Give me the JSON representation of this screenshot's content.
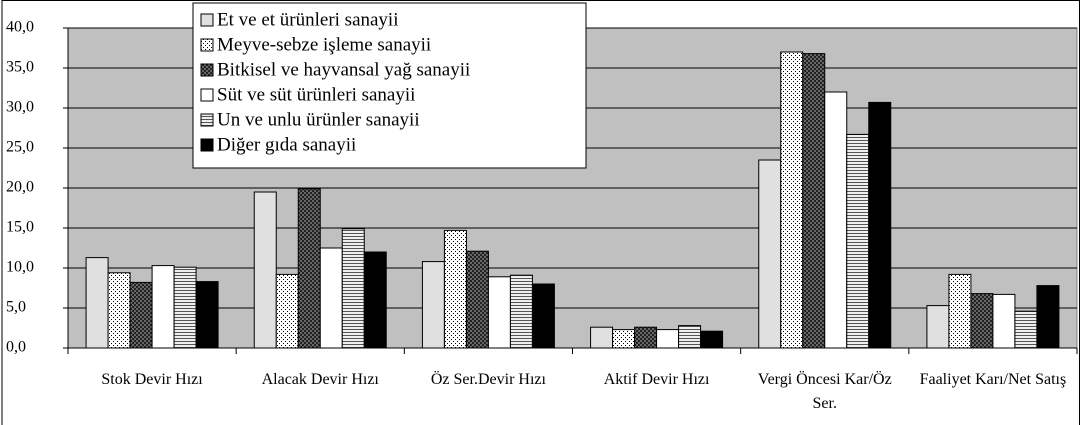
{
  "chart_data": {
    "type": "bar",
    "categories": [
      "Stok Devir Hızı",
      "Alacak Devir Hızı",
      "Öz Ser.Devir Hızı",
      "Aktif Devir Hızı",
      "Vergi Öncesi Kar/Öz Ser.",
      "Faaliyet Karı/Net Satış"
    ],
    "series": [
      {
        "name": "Et ve et ürünleri sanayii",
        "color": "#e0e0e0",
        "pattern": "solid",
        "values": [
          11.3,
          19.5,
          10.8,
          2.6,
          23.5,
          5.3
        ]
      },
      {
        "name": "Meyve-sebze işleme sanayii",
        "color": "#ffffff",
        "pattern": "dots",
        "values": [
          9.4,
          9.2,
          14.7,
          2.3,
          37.0,
          9.2
        ]
      },
      {
        "name": "Bitkisel ve hayvansal yağ sanayii",
        "color": "#333333",
        "pattern": "checker",
        "values": [
          8.2,
          19.9,
          12.1,
          2.6,
          36.8,
          6.8
        ]
      },
      {
        "name": "Süt ve süt ürünleri sanayii",
        "color": "#ffffff",
        "pattern": "solid",
        "values": [
          10.3,
          12.5,
          8.9,
          2.3,
          32.0,
          6.7
        ]
      },
      {
        "name": "Un ve unlu ürünler sanayii",
        "color": "#e8e8e8",
        "pattern": "stripes",
        "values": [
          10.1,
          14.9,
          9.1,
          2.8,
          26.7,
          4.6
        ]
      },
      {
        "name": "Diğer gıda sanayii",
        "color": "#000000",
        "pattern": "solid",
        "values": [
          8.3,
          12.0,
          8.0,
          2.1,
          30.7,
          7.8
        ]
      }
    ],
    "ylim": [
      0,
      40
    ],
    "yticks": [
      {
        "value": 0,
        "label": "0,0"
      },
      {
        "value": 5,
        "label": "5,0"
      },
      {
        "value": 10,
        "label": "10,0"
      },
      {
        "value": 15,
        "label": "15,0"
      },
      {
        "value": 20,
        "label": "20,0"
      },
      {
        "value": 25,
        "label": "25,0"
      },
      {
        "value": 30,
        "label": "30,0"
      },
      {
        "value": 35,
        "label": "35,0"
      },
      {
        "value": 40,
        "label": "40,0"
      }
    ],
    "plot_background": "#c0c0c0",
    "legend": "top-left"
  }
}
